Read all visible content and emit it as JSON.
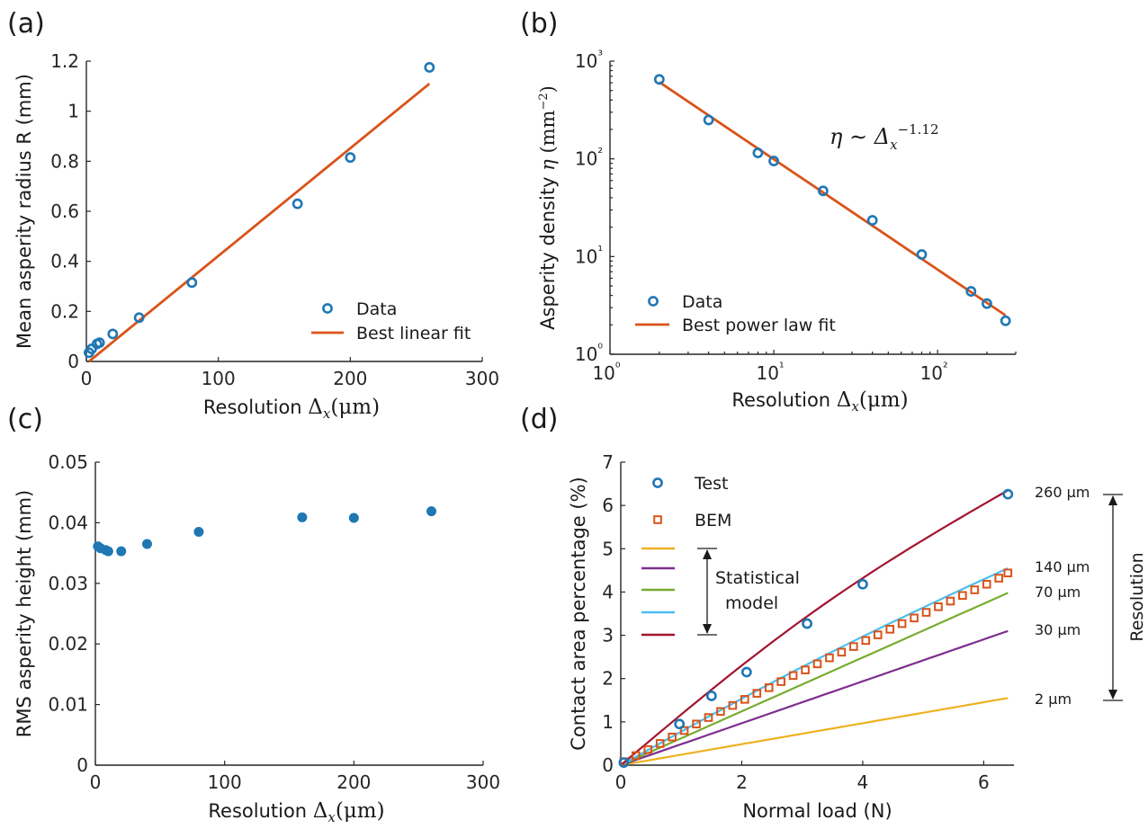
{
  "colors": {
    "data_blue": "#1f77b4",
    "fit_orange": "#d95319",
    "bem_orange": "#d95319",
    "model_2um": "#edb120",
    "model_30um": "#7e2f8e",
    "model_70um": "#77ac30",
    "model_140um": "#4dbeee",
    "model_260um": "#a2142f"
  },
  "chart_data": [
    {
      "panel_label": "(a)",
      "type": "scatter",
      "xlabel": "Resolution",
      "xlabel_math": "Δx(μm)",
      "ylabel": "Mean asperity radius R (mm)",
      "xlim": [
        0,
        300
      ],
      "ylim": [
        0,
        1.2
      ],
      "xticks": [
        "0",
        "100",
        "200",
        "300"
      ],
      "yticks": [
        "0",
        "0.2",
        "0.4",
        "0.6",
        "0.8",
        "1",
        "1.2"
      ],
      "series": [
        {
          "name": "Data",
          "x": [
            2,
            4,
            8,
            10,
            20,
            40,
            80,
            160,
            200,
            260
          ],
          "y": [
            0.035,
            0.05,
            0.07,
            0.075,
            0.11,
            0.175,
            0.315,
            0.63,
            0.815,
            1.175
          ]
        },
        {
          "name": "Best linear fit",
          "x": [
            2,
            260
          ],
          "y": [
            0.0,
            1.11
          ]
        }
      ],
      "legend": [
        "Data",
        "Best linear fit"
      ]
    },
    {
      "panel_label": "(b)",
      "type": "scatter",
      "xlabel": "Resolution",
      "xlabel_math": "Δx(μm)",
      "ylabel": "Asperity density",
      "ylabel_math": "η (mm⁻²)",
      "xscale": "log",
      "yscale": "log",
      "xlim": [
        1,
        300
      ],
      "ylim": [
        1,
        1000
      ],
      "xticks": [
        "10⁰",
        "10¹",
        "10²"
      ],
      "yticks": [
        "10⁰",
        "10¹",
        "10²",
        "10³"
      ],
      "annotation": "η ∼ Δx^-1.12",
      "series": [
        {
          "name": "Data",
          "x": [
            2,
            4,
            8,
            10,
            20,
            40,
            80,
            160,
            200,
            260
          ],
          "y": [
            650,
            250,
            115,
            95,
            47,
            23.5,
            10.5,
            4.4,
            3.3,
            2.2
          ]
        },
        {
          "name": "Best power law fit",
          "x": [
            2,
            260
          ],
          "y": [
            610,
            2.5
          ]
        }
      ],
      "legend": [
        "Data",
        "Best power law fit"
      ]
    },
    {
      "panel_label": "(c)",
      "type": "scatter",
      "xlabel": "Resolution",
      "xlabel_math": "Δx(μm)",
      "ylabel": "RMS asperity height (mm)",
      "xlim": [
        0,
        300
      ],
      "ylim": [
        0,
        0.05
      ],
      "xticks": [
        "0",
        "100",
        "200",
        "300"
      ],
      "yticks": [
        "0",
        "0.01",
        "0.02",
        "0.03",
        "0.04",
        "0.05"
      ],
      "series": [
        {
          "name": "",
          "x": [
            2,
            4,
            8,
            10,
            20,
            40,
            80,
            160,
            200,
            260
          ],
          "y": [
            0.0361,
            0.0358,
            0.0355,
            0.0353,
            0.0353,
            0.0365,
            0.0385,
            0.0409,
            0.0408,
            0.0419
          ]
        }
      ]
    },
    {
      "panel_label": "(d)",
      "type": "line",
      "xlabel": "Normal load (N)",
      "ylabel": "Contact area percentage (%)",
      "xlim": [
        0,
        6.5
      ],
      "ylim": [
        0,
        7
      ],
      "xticks": [
        "0",
        "2",
        "4",
        "6"
      ],
      "yticks": [
        "0",
        "1",
        "2",
        "3",
        "4",
        "5",
        "6",
        "7"
      ],
      "legend": [
        "Test",
        "BEM",
        "Statistical model"
      ],
      "bracket_label": "Statistical model",
      "resolution_label": "Resolution",
      "line_labels": [
        "260 μm",
        "140 μm",
        "70 μm",
        "30 μm",
        "2 μm"
      ],
      "series": [
        {
          "name": "Test",
          "x": [
            0.05,
            0.97,
            1.5,
            2.08,
            3.08,
            4.0,
            6.4
          ],
          "y": [
            0.06,
            0.95,
            1.6,
            2.15,
            3.27,
            4.18,
            6.26
          ]
        },
        {
          "name": "BEM",
          "x": [
            0.05,
            0.25,
            0.45,
            0.65,
            0.85,
            1.05,
            1.25,
            1.45,
            1.65,
            1.85,
            2.05,
            2.25,
            2.45,
            2.65,
            2.85,
            3.05,
            3.25,
            3.45,
            3.65,
            3.85,
            4.05,
            4.25,
            4.45,
            4.65,
            4.85,
            5.05,
            5.25,
            5.45,
            5.65,
            5.85,
            6.05,
            6.25,
            6.4
          ],
          "y": [
            0.08,
            0.22,
            0.36,
            0.5,
            0.65,
            0.8,
            0.95,
            1.1,
            1.24,
            1.38,
            1.52,
            1.66,
            1.79,
            1.93,
            2.07,
            2.2,
            2.34,
            2.48,
            2.61,
            2.74,
            2.88,
            3.01,
            3.14,
            3.27,
            3.4,
            3.53,
            3.66,
            3.79,
            3.92,
            4.05,
            4.18,
            4.32,
            4.44
          ]
        },
        {
          "name": "2 μm",
          "x": [
            0,
            6.4
          ],
          "y": [
            0,
            1.55
          ]
        },
        {
          "name": "30 μm",
          "x": [
            0,
            6.4
          ],
          "y": [
            0,
            3.1
          ]
        },
        {
          "name": "70 μm",
          "x": [
            0,
            6.4
          ],
          "y": [
            0,
            3.98
          ]
        },
        {
          "name": "140 μm",
          "x": [
            0,
            6.4
          ],
          "y": [
            0,
            4.55
          ]
        },
        {
          "name": "260 μm",
          "x": [
            0,
            6.4
          ],
          "y": [
            0,
            6.35
          ]
        }
      ]
    }
  ]
}
